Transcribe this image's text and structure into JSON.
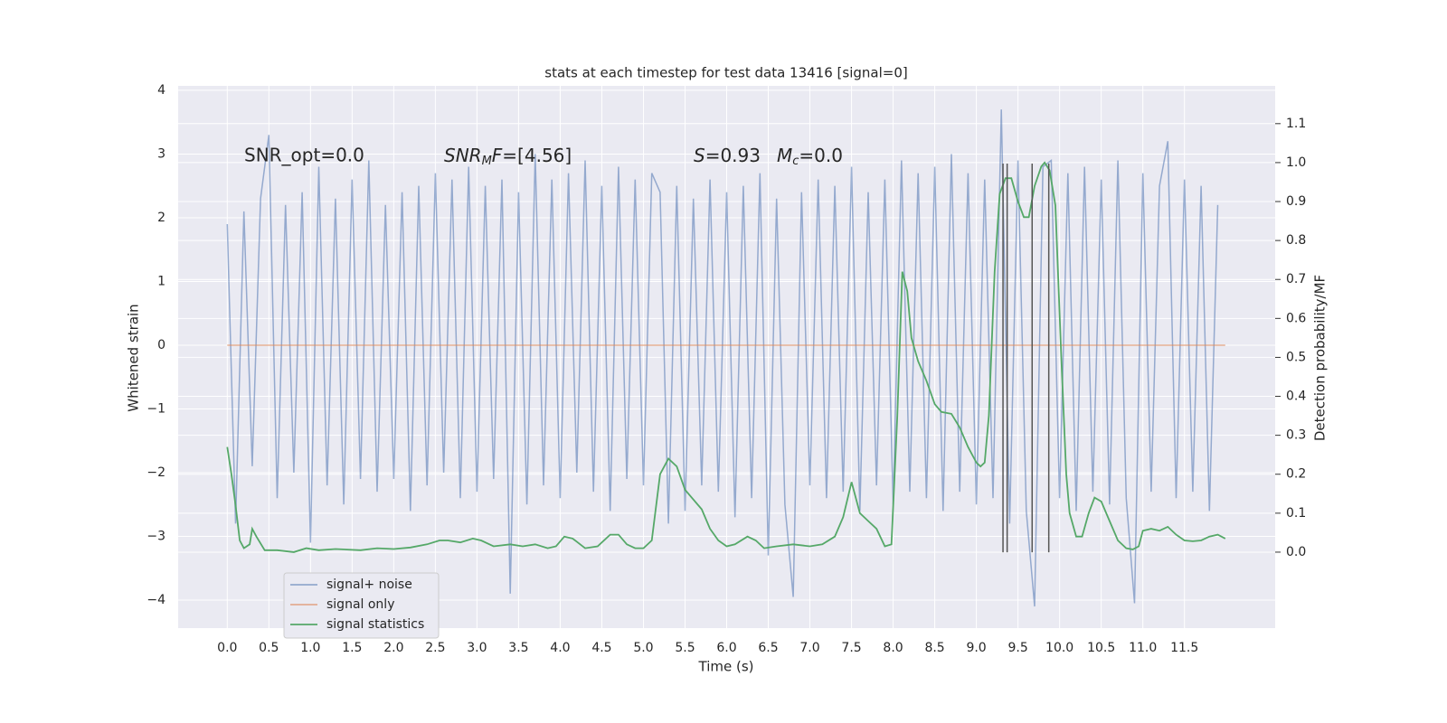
{
  "chart_data": {
    "type": "line",
    "title": "stats at each timestep for test data 13416 [signal=0]",
    "xlabel": "Time (s)",
    "ylabel": "Whitened strain",
    "y2label": "Detection probability/MF",
    "xlim": [
      -0.59,
      12.59
    ],
    "ylim": [
      -4.44,
      4.07
    ],
    "y2lim": [
      -0.195,
      1.197
    ],
    "xticks": [
      {
        "value": 0,
        "label": "0.0"
      },
      0.5,
      {
        "value": 1,
        "label": "1.0"
      },
      1.5,
      {
        "value": 2,
        "label": "2.0"
      },
      2.5,
      {
        "value": 3,
        "label": "3.0"
      },
      3.5,
      {
        "value": 4,
        "label": "4.0"
      },
      4.5,
      {
        "value": 5,
        "label": "5.0"
      },
      5.5,
      {
        "value": 6,
        "label": "6.0"
      },
      6.5,
      {
        "value": 7,
        "label": "7.0"
      },
      7.5,
      {
        "value": 8,
        "label": "8.0"
      },
      8.5,
      {
        "value": 9,
        "label": "9.0"
      },
      9.5,
      {
        "value": 10,
        "label": "10.0"
      },
      10.5,
      {
        "value": 11,
        "label": "11.0"
      },
      11.5
    ],
    "yticks": [
      {
        "value": -4,
        "label": "−4"
      },
      {
        "value": -3,
        "label": "−3"
      },
      {
        "value": -2,
        "label": "−2"
      },
      {
        "value": -1,
        "label": "−1"
      },
      0,
      1,
      2,
      3,
      4
    ],
    "y2ticks": [
      {
        "value": 0,
        "label": "0.0"
      },
      0.1,
      0.2,
      0.3,
      0.4,
      0.5,
      0.6,
      0.7,
      0.8,
      0.9,
      {
        "value": 1,
        "label": "1.0"
      },
      1.1
    ],
    "grid": true,
    "legend": "lower left",
    "annotations": [
      {
        "text": "SNR_opt=0.0"
      },
      {
        "base": "SNR",
        "sub": "M",
        "base2": "F",
        "tail": "=[4.56]"
      },
      {
        "base": "S",
        "tail": "=0.93"
      },
      {
        "base": "M",
        "sub": "c",
        "tail": "=0.0"
      }
    ],
    "series": [
      {
        "name": "signal+ noise",
        "color": "#4c72b0",
        "x": [
          0.0,
          0.1,
          0.2,
          0.3,
          0.4,
          0.5,
          0.6,
          0.7,
          0.8,
          0.9,
          1.0,
          1.1,
          1.2,
          1.3,
          1.4,
          1.5,
          1.6,
          1.7,
          1.8,
          1.9,
          2.0,
          2.1,
          2.2,
          2.3,
          2.4,
          2.5,
          2.6,
          2.7,
          2.8,
          2.9,
          3.0,
          3.1,
          3.2,
          3.3,
          3.4,
          3.5,
          3.6,
          3.7,
          3.8,
          3.9,
          4.0,
          4.1,
          4.2,
          4.3,
          4.4,
          4.5,
          4.6,
          4.7,
          4.8,
          4.9,
          5.0,
          5.1,
          5.2,
          5.3,
          5.4,
          5.5,
          5.6,
          5.7,
          5.8,
          5.9,
          6.0,
          6.1,
          6.2,
          6.3,
          6.4,
          6.5,
          6.6,
          6.7,
          6.8,
          6.9,
          7.0,
          7.1,
          7.2,
          7.3,
          7.4,
          7.5,
          7.6,
          7.7,
          7.8,
          7.9,
          8.0,
          8.1,
          8.2,
          8.3,
          8.4,
          8.5,
          8.6,
          8.7,
          8.8,
          8.9,
          9.0,
          9.1,
          9.2,
          9.3,
          9.4,
          9.5,
          9.6,
          9.7,
          9.8,
          9.9,
          10.0,
          10.1,
          10.2,
          10.3,
          10.4,
          10.5,
          10.6,
          10.7,
          10.8,
          10.9,
          11.0,
          11.1,
          11.2,
          11.3,
          11.4,
          11.5,
          11.6,
          11.7,
          11.8,
          11.9
        ],
        "values": [
          1.9,
          -2.8,
          2.1,
          -1.9,
          2.3,
          3.3,
          -2.4,
          2.2,
          -2.0,
          2.4,
          -3.1,
          2.8,
          -2.2,
          2.3,
          -2.5,
          2.6,
          -2.1,
          2.9,
          -2.3,
          2.2,
          -2.1,
          2.4,
          -2.6,
          2.5,
          -2.2,
          2.7,
          -2.0,
          2.6,
          -2.4,
          2.8,
          -2.3,
          2.5,
          -2.1,
          2.6,
          -3.9,
          2.4,
          -2.5,
          3.0,
          -2.2,
          2.6,
          -2.4,
          2.7,
          -2.0,
          2.9,
          -2.3,
          2.5,
          -2.6,
          2.8,
          -2.1,
          2.6,
          -2.2,
          2.7,
          2.4,
          -2.8,
          2.5,
          -2.6,
          2.3,
          -2.2,
          2.6,
          -2.3,
          2.4,
          -2.7,
          2.5,
          -2.4,
          2.7,
          -3.3,
          2.3,
          -2.5,
          -3.95,
          2.4,
          -2.2,
          2.6,
          -2.4,
          2.5,
          -2.3,
          2.8,
          -2.6,
          2.4,
          -2.2,
          2.6,
          -2.5,
          2.9,
          -2.3,
          2.7,
          -2.4,
          2.8,
          -2.6,
          3.0,
          -2.3,
          2.7,
          -2.5,
          2.6,
          -2.4,
          3.7,
          -2.8,
          2.9,
          -2.6,
          -4.1,
          2.8,
          2.9,
          -2.4,
          2.7,
          -2.6,
          2.8,
          -2.3,
          2.6,
          -2.5,
          2.9,
          -2.4,
          -4.05,
          2.7,
          -2.3,
          2.5,
          3.2,
          -2.4,
          2.6,
          -2.3,
          2.5,
          -2.6,
          2.2
        ]
      },
      {
        "name": "signal only",
        "color": "#dd8452",
        "x": [
          0.0,
          11.99
        ],
        "values": [
          0,
          0
        ]
      },
      {
        "name": "signal statistics",
        "color": "#55a868",
        "axis": "y2",
        "x": [
          0.0,
          0.05,
          0.1,
          0.15,
          0.2,
          0.27,
          0.3,
          0.35,
          0.45,
          0.6,
          0.8,
          0.95,
          1.1,
          1.3,
          1.6,
          1.8,
          2.0,
          2.2,
          2.4,
          2.55,
          2.65,
          2.8,
          2.95,
          3.05,
          3.2,
          3.4,
          3.55,
          3.7,
          3.85,
          3.95,
          4.05,
          4.15,
          4.3,
          4.45,
          4.6,
          4.7,
          4.8,
          4.9,
          5.0,
          5.1,
          5.2,
          5.3,
          5.4,
          5.5,
          5.7,
          5.8,
          5.9,
          6.0,
          6.1,
          6.25,
          6.35,
          6.45,
          6.6,
          6.8,
          7.0,
          7.15,
          7.3,
          7.4,
          7.5,
          7.6,
          7.7,
          7.8,
          7.9,
          7.98,
          8.05,
          8.11,
          8.17,
          8.22,
          8.3,
          8.4,
          8.5,
          8.58,
          8.7,
          8.8,
          8.9,
          9.0,
          9.05,
          9.1,
          9.15,
          9.22,
          9.28,
          9.35,
          9.42,
          9.5,
          9.57,
          9.63,
          9.7,
          9.78,
          9.82,
          9.88,
          9.95,
          10.02,
          10.08,
          10.12,
          10.2,
          10.27,
          10.35,
          10.42,
          10.5,
          10.6,
          10.7,
          10.8,
          10.88,
          10.95,
          11.0,
          11.1,
          11.2,
          11.3,
          11.4,
          11.5,
          11.6,
          11.7,
          11.8,
          11.9,
          11.99
        ],
        "values": [
          0.27,
          0.2,
          0.12,
          0.03,
          0.01,
          0.02,
          0.06,
          0.04,
          0.005,
          0.005,
          0.0,
          0.01,
          0.005,
          0.008,
          0.005,
          0.01,
          0.008,
          0.012,
          0.02,
          0.03,
          0.03,
          0.025,
          0.035,
          0.03,
          0.015,
          0.02,
          0.015,
          0.02,
          0.01,
          0.015,
          0.04,
          0.035,
          0.01,
          0.015,
          0.045,
          0.045,
          0.02,
          0.01,
          0.01,
          0.03,
          0.2,
          0.24,
          0.22,
          0.16,
          0.11,
          0.06,
          0.03,
          0.015,
          0.02,
          0.04,
          0.03,
          0.01,
          0.015,
          0.02,
          0.015,
          0.02,
          0.04,
          0.09,
          0.18,
          0.1,
          0.08,
          0.06,
          0.015,
          0.02,
          0.35,
          0.72,
          0.67,
          0.55,
          0.49,
          0.44,
          0.38,
          0.36,
          0.355,
          0.32,
          0.27,
          0.23,
          0.22,
          0.23,
          0.35,
          0.72,
          0.92,
          0.96,
          0.96,
          0.9,
          0.86,
          0.86,
          0.94,
          0.99,
          1.0,
          0.98,
          0.89,
          0.5,
          0.2,
          0.1,
          0.04,
          0.04,
          0.1,
          0.14,
          0.13,
          0.08,
          0.03,
          0.01,
          0.007,
          0.015,
          0.055,
          0.06,
          0.055,
          0.065,
          0.045,
          0.03,
          0.028,
          0.03,
          0.04,
          0.045,
          0.035
        ]
      }
    ],
    "vlines": {
      "x": [
        9.32,
        9.37,
        9.67,
        9.87
      ],
      "ymin": -3.25,
      "ymax": 2.85,
      "color": "#555555"
    }
  }
}
